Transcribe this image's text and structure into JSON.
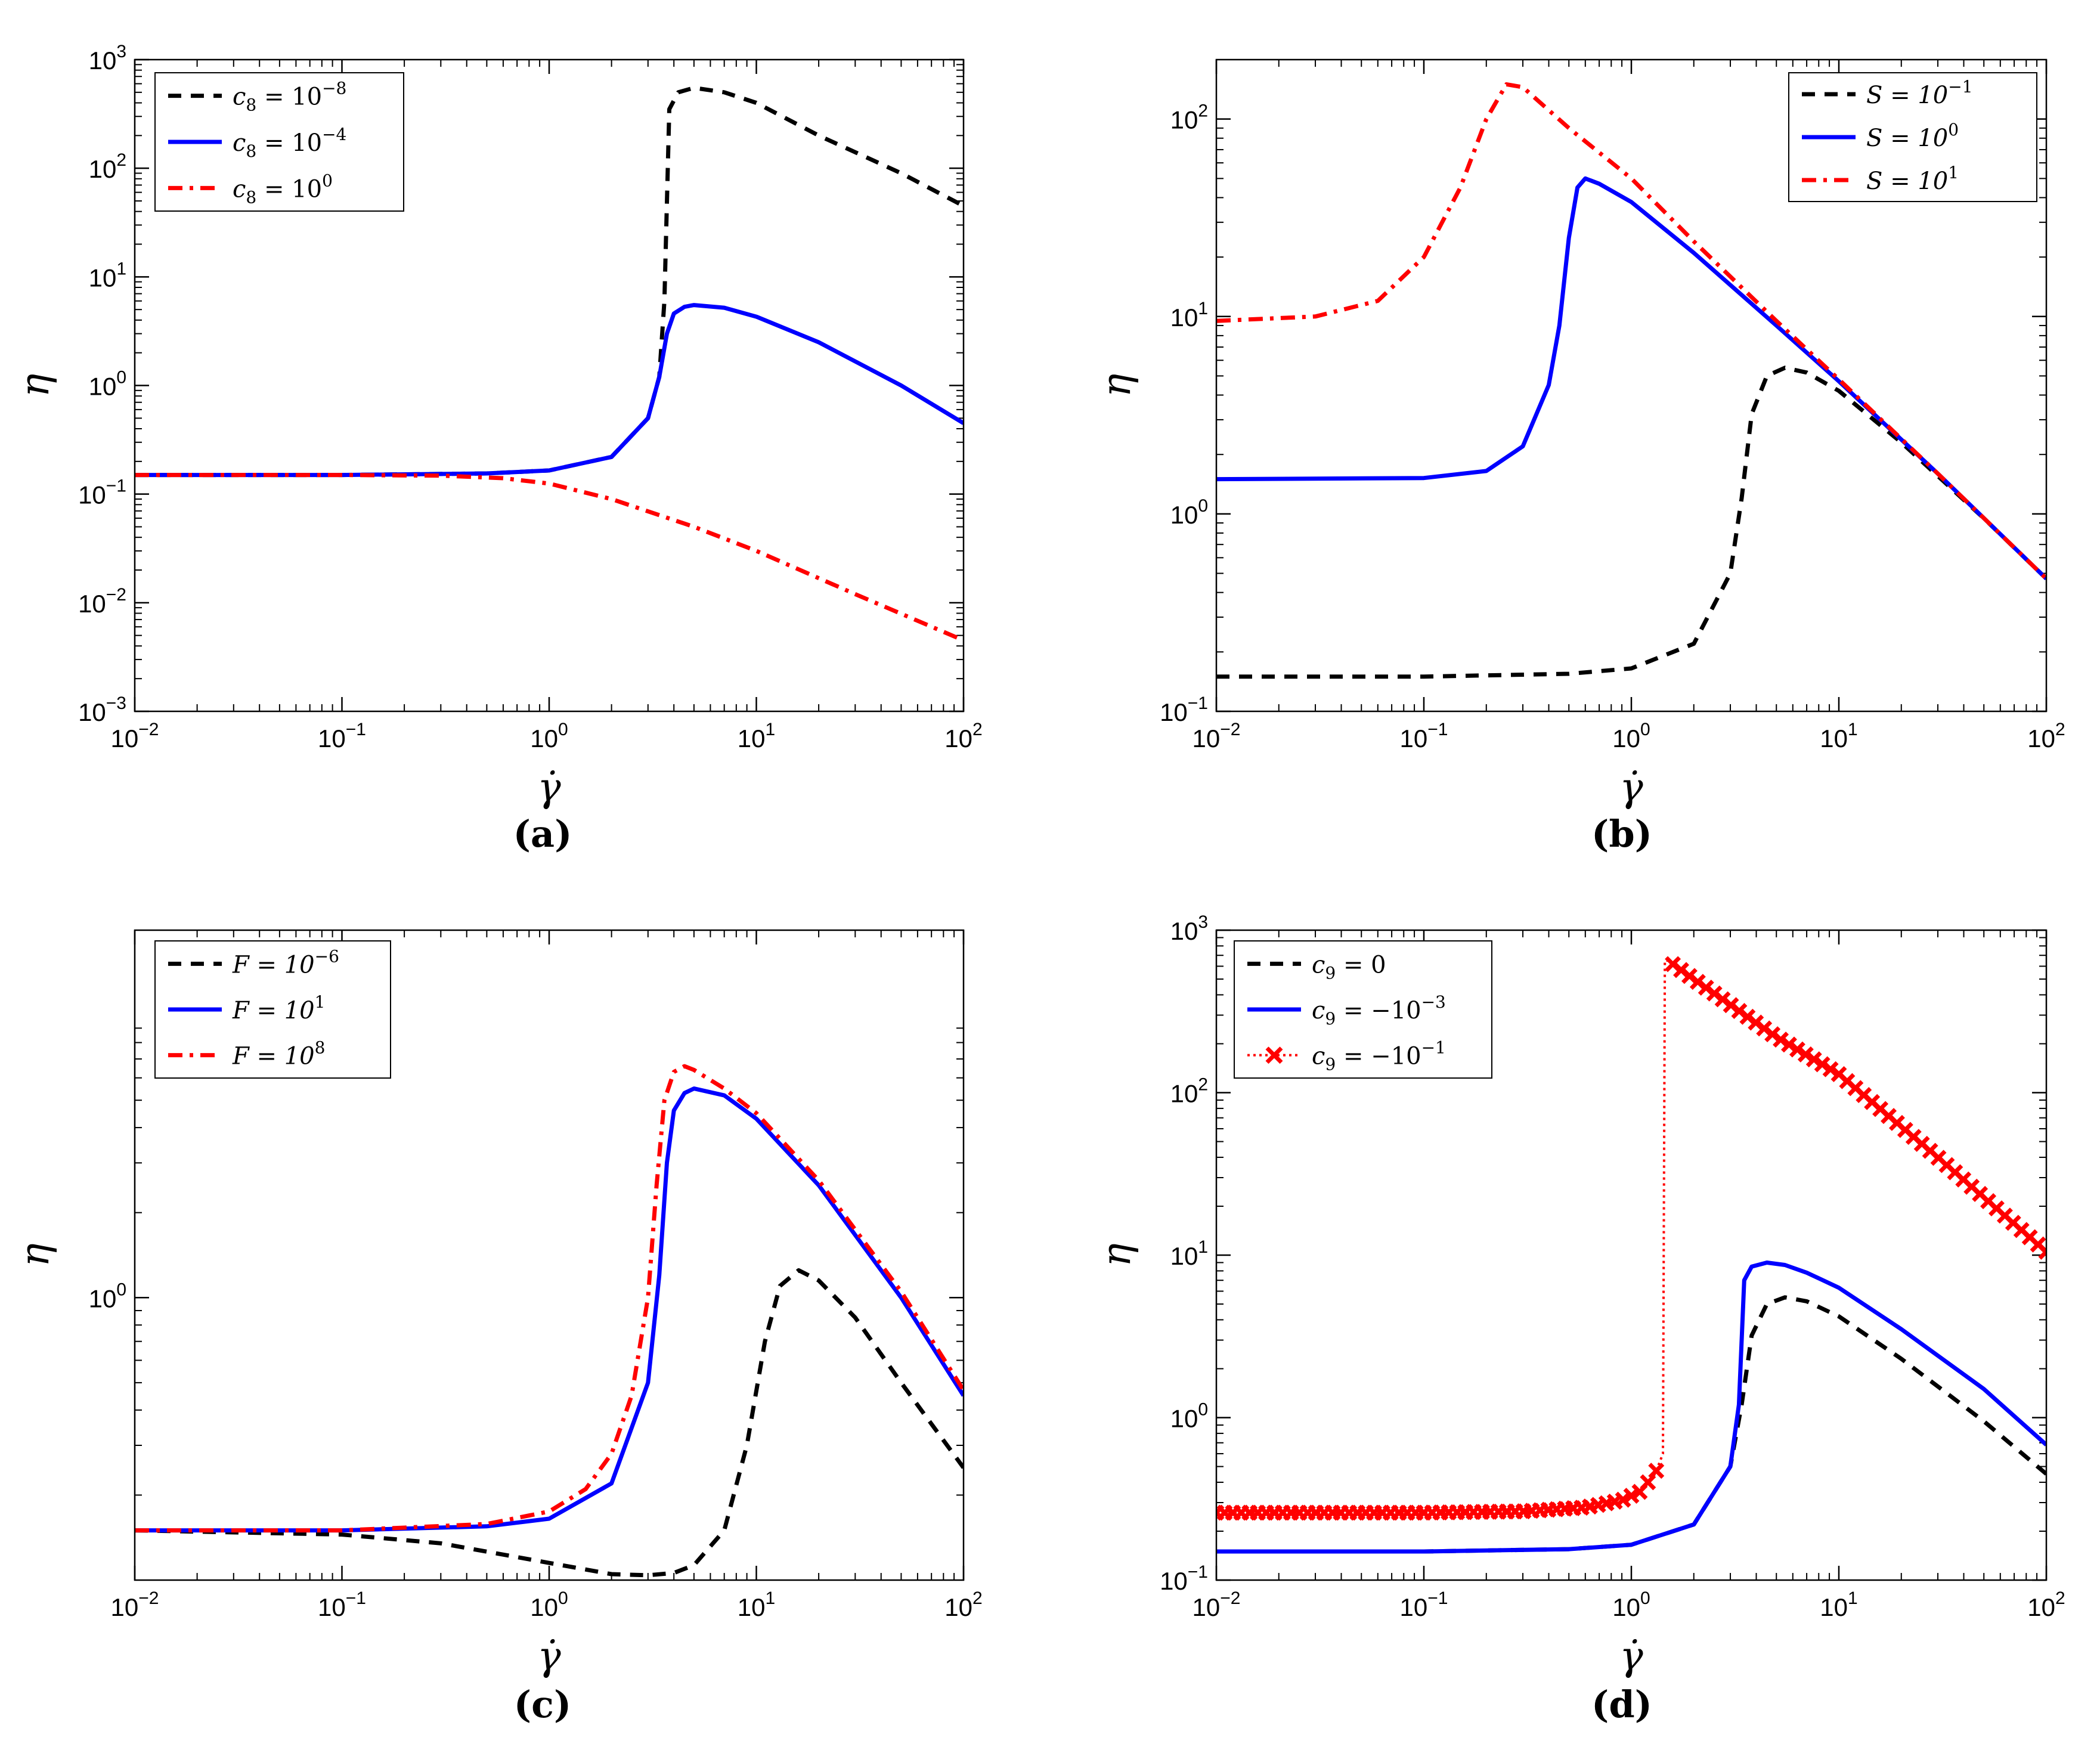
{
  "chart_data": [
    {
      "panel": "(a)",
      "type": "line",
      "scale": "log-log",
      "xlabel": "γ̇",
      "ylabel": "η",
      "xlim": [
        0.01,
        100
      ],
      "ylim": [
        0.001,
        1000
      ],
      "xticks": [
        0.01,
        0.1,
        1,
        10,
        100
      ],
      "xtick_labels": [
        [
          "10",
          "−2"
        ],
        [
          "10",
          "−1"
        ],
        [
          "10",
          "0"
        ],
        [
          "10",
          "1"
        ],
        [
          "10",
          "2"
        ]
      ],
      "yticks": [
        0.001,
        0.01,
        0.1,
        1,
        10,
        100,
        1000
      ],
      "ytick_labels": [
        [
          "10",
          "−3"
        ],
        [
          "10",
          "−2"
        ],
        [
          "10",
          "−1"
        ],
        [
          "10",
          "0"
        ],
        [
          "10",
          "1"
        ],
        [
          "10",
          "2"
        ],
        [
          "10",
          "3"
        ]
      ],
      "legend_position": "top-left",
      "series": [
        {
          "name": "c8 = 10^-8",
          "label": [
            "c",
            "8",
            " = 10",
            "−8"
          ],
          "color": "#000000",
          "style": "dashed",
          "x": [
            0.01,
            0.1,
            0.5,
            1,
            2,
            3,
            3.4,
            3.6,
            3.8,
            4.2,
            5,
            7,
            10,
            20,
            50,
            100
          ],
          "y": [
            0.15,
            0.15,
            0.155,
            0.165,
            0.22,
            0.5,
            1.2,
            6,
            350,
            500,
            550,
            500,
            400,
            200,
            90,
            45
          ]
        },
        {
          "name": "c8 = 10^-4",
          "label": [
            "c",
            "8",
            " = 10",
            "−4"
          ],
          "color": "#0000ff",
          "style": "solid",
          "x": [
            0.01,
            0.1,
            0.5,
            1,
            2,
            3,
            3.4,
            3.7,
            4,
            4.5,
            5,
            7,
            10,
            20,
            50,
            100
          ],
          "y": [
            0.15,
            0.15,
            0.155,
            0.165,
            0.22,
            0.5,
            1.2,
            3,
            4.6,
            5.3,
            5.5,
            5.2,
            4.3,
            2.5,
            1,
            0.45
          ]
        },
        {
          "name": "c8 = 10^0",
          "label": [
            "c",
            "8",
            " = 10",
            "0"
          ],
          "color": "#ff0000",
          "style": "dashdot",
          "x": [
            0.01,
            0.1,
            0.3,
            0.6,
            1,
            2,
            5,
            10,
            30,
            100
          ],
          "y": [
            0.15,
            0.15,
            0.148,
            0.14,
            0.125,
            0.09,
            0.05,
            0.03,
            0.012,
            0.0045
          ]
        }
      ]
    },
    {
      "panel": "(b)",
      "type": "line",
      "scale": "log-log",
      "xlabel": "γ̇",
      "ylabel": "η",
      "xlim": [
        0.01,
        100
      ],
      "ylim": [
        0.1,
        200
      ],
      "xticks": [
        0.01,
        0.1,
        1,
        10,
        100
      ],
      "xtick_labels": [
        [
          "10",
          "−2"
        ],
        [
          "10",
          "−1"
        ],
        [
          "10",
          "0"
        ],
        [
          "10",
          "1"
        ],
        [
          "10",
          "2"
        ]
      ],
      "yticks": [
        0.1,
        1,
        10,
        100
      ],
      "ytick_labels": [
        [
          "10",
          "−1"
        ],
        [
          "10",
          "0"
        ],
        [
          "10",
          "1"
        ],
        [
          "10",
          "2"
        ]
      ],
      "legend_position": "top-right",
      "series": [
        {
          "name": "S = 10^-1",
          "label": [
            "S = 10",
            "−1"
          ],
          "color": "#000000",
          "style": "dashed",
          "x": [
            0.01,
            0.1,
            0.5,
            1,
            2,
            3,
            3.4,
            3.8,
            4.5,
            5.5,
            7,
            10,
            20,
            50,
            100
          ],
          "y": [
            0.15,
            0.15,
            0.155,
            0.165,
            0.22,
            0.5,
            1.2,
            3.2,
            5,
            5.5,
            5.2,
            4.2,
            2.3,
            0.95,
            0.47
          ]
        },
        {
          "name": "S = 10^0",
          "label": [
            "S = 10",
            "0"
          ],
          "color": "#0000ff",
          "style": "solid",
          "x": [
            0.01,
            0.1,
            0.2,
            0.3,
            0.4,
            0.45,
            0.5,
            0.55,
            0.6,
            0.7,
            1,
            2,
            5,
            10,
            30,
            100
          ],
          "y": [
            1.5,
            1.52,
            1.65,
            2.2,
            4.5,
            9,
            25,
            45,
            50,
            47,
            38,
            21,
            9,
            4.7,
            1.6,
            0.47
          ]
        },
        {
          "name": "S = 10^1",
          "label": [
            "S = 10",
            "1"
          ],
          "color": "#ff0000",
          "style": "dashdot",
          "x": [
            0.01,
            0.03,
            0.06,
            0.1,
            0.15,
            0.2,
            0.25,
            0.3,
            0.5,
            1,
            2,
            5,
            10,
            30,
            100
          ],
          "y": [
            9.5,
            10,
            12,
            20,
            45,
            100,
            150,
            145,
            90,
            50,
            24,
            9.5,
            4.8,
            1.6,
            0.47
          ]
        }
      ]
    },
    {
      "panel": "(c)",
      "type": "line",
      "scale": "log-log",
      "xlabel": "γ̇",
      "ylabel": "η",
      "xlim": [
        0.01,
        100
      ],
      "ylim": [
        0.1,
        20
      ],
      "xticks": [
        0.01,
        0.1,
        1,
        10,
        100
      ],
      "xtick_labels": [
        [
          "10",
          "−2"
        ],
        [
          "10",
          "−1"
        ],
        [
          "10",
          "0"
        ],
        [
          "10",
          "1"
        ],
        [
          "10",
          "2"
        ]
      ],
      "yticks": [
        1
      ],
      "ytick_labels": [
        [
          "10",
          "0"
        ]
      ],
      "legend_position": "top-left",
      "series": [
        {
          "name": "F = 10^-6",
          "label": [
            "F = 10",
            "−6"
          ],
          "color": "#000000",
          "style": "dashed",
          "x": [
            0.01,
            0.1,
            0.3,
            1,
            2,
            3,
            4,
            5,
            7,
            9,
            11,
            13,
            16,
            20,
            30,
            50,
            100
          ],
          "y": [
            0.15,
            0.145,
            0.135,
            0.115,
            0.105,
            0.104,
            0.106,
            0.113,
            0.15,
            0.3,
            0.7,
            1.1,
            1.25,
            1.15,
            0.85,
            0.5,
            0.25
          ]
        },
        {
          "name": "F = 10^1",
          "label": [
            "F = 10",
            "1"
          ],
          "color": "#0000ff",
          "style": "solid",
          "x": [
            0.01,
            0.1,
            0.5,
            1,
            2,
            3,
            3.4,
            3.7,
            4,
            4.5,
            5,
            7,
            10,
            20,
            50,
            100
          ],
          "y": [
            0.15,
            0.15,
            0.155,
            0.165,
            0.22,
            0.5,
            1.2,
            3,
            4.6,
            5.3,
            5.5,
            5.2,
            4.3,
            2.5,
            1,
            0.45
          ]
        },
        {
          "name": "F = 10^8",
          "label": [
            "F = 10",
            "8"
          ],
          "color": "#ff0000",
          "style": "dashdot",
          "x": [
            0.01,
            0.1,
            0.5,
            1,
            1.5,
            2,
            2.5,
            3,
            3.3,
            3.6,
            4,
            4.5,
            5,
            7,
            10,
            20,
            50,
            100
          ],
          "y": [
            0.15,
            0.15,
            0.158,
            0.175,
            0.21,
            0.28,
            0.45,
            1,
            2.5,
            5,
            6.3,
            6.6,
            6.4,
            5.5,
            4.5,
            2.6,
            1.05,
            0.47
          ]
        }
      ]
    },
    {
      "panel": "(d)",
      "type": "line",
      "scale": "log-log",
      "xlabel": "γ̇",
      "ylabel": "η",
      "xlim": [
        0.01,
        100
      ],
      "ylim": [
        0.1,
        1000
      ],
      "xticks": [
        0.01,
        0.1,
        1,
        10,
        100
      ],
      "xtick_labels": [
        [
          "10",
          "−2"
        ],
        [
          "10",
          "−1"
        ],
        [
          "10",
          "0"
        ],
        [
          "10",
          "1"
        ],
        [
          "10",
          "2"
        ]
      ],
      "yticks": [
        0.1,
        1,
        10,
        100,
        1000
      ],
      "ytick_labels": [
        [
          "10",
          "−1"
        ],
        [
          "10",
          "0"
        ],
        [
          "10",
          "1"
        ],
        [
          "10",
          "2"
        ],
        [
          "10",
          "3"
        ]
      ],
      "legend_position": "top-left",
      "series": [
        {
          "name": "c9 = 0",
          "label": [
            "c",
            "9",
            " = 0"
          ],
          "color": "#000000",
          "style": "dashed",
          "x": [
            0.01,
            0.1,
            0.5,
            1,
            2,
            3,
            3.4,
            3.8,
            4.5,
            5.5,
            7,
            10,
            20,
            50,
            100
          ],
          "y": [
            0.15,
            0.15,
            0.155,
            0.165,
            0.22,
            0.5,
            1.2,
            3.2,
            5,
            5.5,
            5.2,
            4.2,
            2.3,
            0.95,
            0.45
          ]
        },
        {
          "name": "c9 = -10^-3",
          "label": [
            "c",
            "9",
            " = −10",
            "−3"
          ],
          "color": "#0000ff",
          "style": "solid",
          "x": [
            0.01,
            0.1,
            0.5,
            1,
            2,
            3,
            3.3,
            3.5,
            3.8,
            4.5,
            5.5,
            7,
            10,
            20,
            50,
            100
          ],
          "y": [
            0.15,
            0.15,
            0.155,
            0.165,
            0.22,
            0.5,
            1.2,
            7,
            8.5,
            9,
            8.7,
            7.8,
            6.3,
            3.5,
            1.5,
            0.68
          ]
        },
        {
          "name": "c9 = -10^-1",
          "label": [
            "c",
            "9",
            " = −10",
            "−1"
          ],
          "color": "#ff0000",
          "style": "dotted-x",
          "x": [
            0.01,
            0.1,
            0.3,
            0.6,
            0.9,
            1.1,
            1.3,
            1.42,
            1.45,
            1.5,
            2,
            5,
            10,
            30,
            100
          ],
          "y": [
            0.26,
            0.26,
            0.265,
            0.28,
            0.31,
            0.35,
            0.45,
            0.6,
            650,
            650,
            500,
            220,
            130,
            40,
            10.5
          ]
        }
      ]
    }
  ]
}
